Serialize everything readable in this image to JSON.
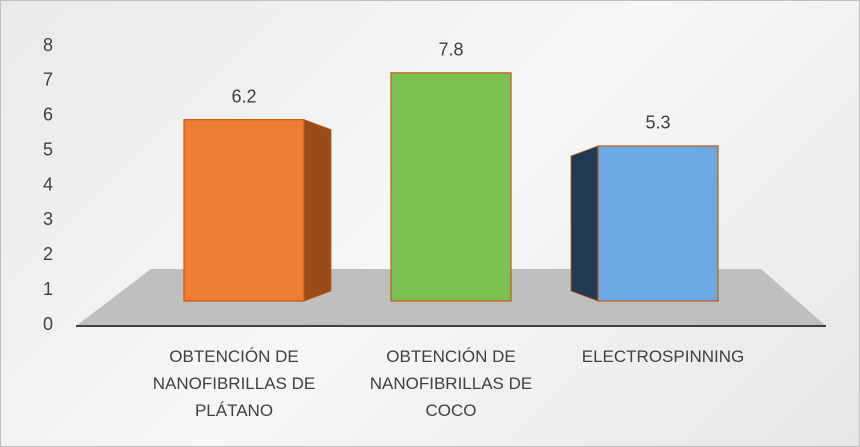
{
  "chart_data": {
    "type": "bar3d",
    "categories": [
      "OBTENCIÓN DE NANOFIBRILLAS DE PLÁTANO",
      "OBTENCIÓN DE NANOFIBRILLAS DE COCO",
      "ELECTROSPINNING"
    ],
    "values": [
      6.2,
      7.8,
      5.3
    ],
    "colors": [
      "#ed7d31",
      "#7cc252",
      "#6aa9e4"
    ],
    "side_colors": [
      "#9a4c18",
      null,
      "#1f3a52"
    ],
    "ylim": [
      0,
      8
    ],
    "yticks": [
      0,
      1,
      2,
      3,
      4,
      5,
      6,
      7,
      8
    ],
    "grid": false
  }
}
